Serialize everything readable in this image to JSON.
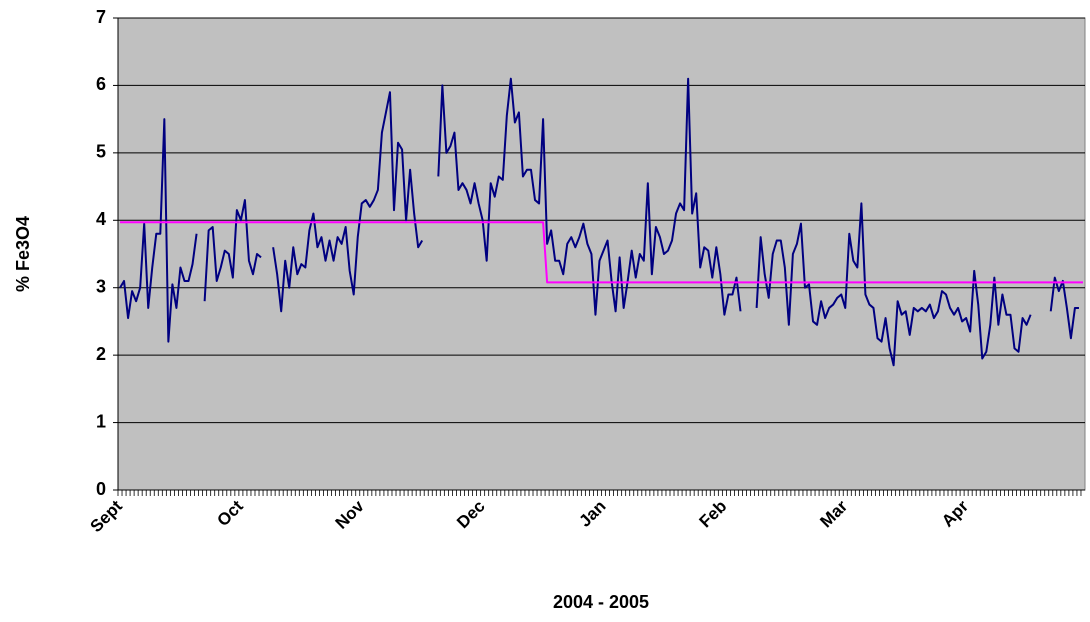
{
  "chart_data": {
    "type": "line",
    "y_label": "% Fe3O4",
    "x_label": "2004 - 2005",
    "categories": [
      "Sept",
      null,
      null,
      null,
      null,
      null,
      null,
      null,
      null,
      null,
      null,
      null,
      null,
      null,
      null,
      null,
      null,
      null,
      null,
      null,
      null,
      null,
      null,
      null,
      null,
      null,
      null,
      null,
      null,
      null,
      "Oct",
      null,
      null,
      null,
      null,
      null,
      null,
      null,
      null,
      null,
      null,
      null,
      null,
      null,
      null,
      null,
      null,
      null,
      null,
      null,
      null,
      null,
      null,
      null,
      null,
      null,
      null,
      null,
      null,
      null,
      "Nov",
      null,
      null,
      null,
      null,
      null,
      null,
      null,
      null,
      null,
      null,
      null,
      null,
      null,
      null,
      null,
      null,
      null,
      null,
      null,
      null,
      null,
      null,
      null,
      null,
      null,
      null,
      null,
      null,
      null,
      "Dec",
      null,
      null,
      null,
      null,
      null,
      null,
      null,
      null,
      null,
      null,
      null,
      null,
      null,
      null,
      null,
      null,
      null,
      null,
      null,
      null,
      null,
      null,
      null,
      null,
      null,
      null,
      null,
      null,
      null,
      "Jan",
      null,
      null,
      null,
      null,
      null,
      null,
      null,
      null,
      null,
      null,
      null,
      null,
      null,
      null,
      null,
      null,
      null,
      null,
      null,
      null,
      null,
      null,
      null,
      null,
      null,
      null,
      null,
      null,
      null,
      "Feb",
      null,
      null,
      null,
      null,
      null,
      null,
      null,
      null,
      null,
      null,
      null,
      null,
      null,
      null,
      null,
      null,
      null,
      null,
      null,
      null,
      null,
      null,
      null,
      null,
      null,
      null,
      null,
      null,
      null,
      "Mar",
      null,
      null,
      null,
      null,
      null,
      null,
      null,
      null,
      null,
      null,
      null,
      null,
      null,
      null,
      null,
      null,
      null,
      null,
      null,
      null,
      null,
      null,
      null,
      null,
      null,
      null,
      null,
      null,
      null,
      "Apr",
      null,
      null,
      null,
      null,
      null,
      null,
      null,
      null,
      null,
      null,
      null,
      null,
      null,
      null,
      null,
      null,
      null,
      null,
      null,
      null,
      null,
      null,
      null,
      null,
      null,
      null,
      null,
      null,
      null
    ],
    "series": [
      {
        "color": "#000080",
        "values": [
          3.0,
          3.1,
          2.55,
          2.95,
          2.8,
          3.0,
          3.95,
          2.7,
          3.3,
          3.8,
          3.8,
          5.5,
          2.2,
          3.05,
          2.7,
          3.3,
          3.1,
          3.1,
          3.35,
          3.8,
          null,
          2.8,
          3.85,
          3.9,
          3.1,
          3.3,
          3.55,
          3.5,
          3.15,
          4.15,
          4.0,
          4.3,
          3.4,
          3.2,
          3.5,
          3.45,
          null,
          null,
          3.6,
          3.2,
          2.65,
          3.4,
          3.0,
          3.6,
          3.2,
          3.35,
          3.3,
          3.85,
          4.1,
          3.6,
          3.75,
          3.4,
          3.7,
          3.4,
          3.75,
          3.65,
          3.9,
          3.25,
          2.9,
          3.75,
          4.25,
          4.3,
          4.2,
          4.3,
          4.45,
          5.3,
          5.6,
          5.9,
          4.15,
          5.15,
          5.05,
          4.0,
          4.75,
          4.1,
          3.6,
          3.7,
          null,
          null,
          null,
          4.65,
          6.0,
          5.0,
          5.1,
          5.3,
          4.45,
          4.55,
          4.45,
          4.25,
          4.55,
          4.25,
          4.0,
          3.4,
          4.55,
          4.35,
          4.65,
          4.6,
          5.55,
          6.1,
          5.45,
          5.6,
          4.65,
          4.75,
          4.75,
          4.3,
          4.25,
          5.5,
          3.65,
          3.85,
          3.4,
          3.4,
          3.2,
          3.65,
          3.75,
          3.6,
          3.75,
          3.95,
          3.65,
          3.5,
          2.6,
          3.4,
          3.55,
          3.7,
          3.1,
          2.65,
          3.45,
          2.7,
          3.1,
          3.55,
          3.15,
          3.5,
          3.4,
          4.55,
          3.2,
          3.9,
          3.75,
          3.5,
          3.55,
          3.7,
          4.1,
          4.25,
          4.15,
          6.1,
          4.1,
          4.4,
          3.3,
          3.6,
          3.55,
          3.15,
          3.6,
          3.2,
          2.6,
          2.9,
          2.9,
          3.15,
          2.65,
          null,
          null,
          null,
          2.7,
          3.75,
          3.2,
          2.85,
          3.5,
          3.7,
          3.7,
          3.3,
          2.45,
          3.5,
          3.65,
          3.95,
          3.0,
          3.05,
          2.5,
          2.45,
          2.8,
          2.55,
          2.7,
          2.75,
          2.85,
          2.9,
          2.7,
          3.8,
          3.4,
          3.3,
          4.25,
          2.9,
          2.75,
          2.7,
          2.25,
          2.2,
          2.55,
          2.1,
          1.85,
          2.8,
          2.6,
          2.65,
          2.3,
          2.7,
          2.65,
          2.7,
          2.65,
          2.75,
          2.55,
          2.65,
          2.95,
          2.9,
          2.7,
          2.6,
          2.7,
          2.5,
          2.55,
          2.35,
          3.25,
          2.75,
          1.95,
          2.05,
          2.45,
          3.15,
          2.45,
          2.9,
          2.6,
          2.6,
          2.1,
          2.05,
          2.55,
          2.45,
          2.6,
          null,
          null,
          null,
          null,
          2.65,
          3.15,
          2.95,
          3.1,
          2.7,
          2.25,
          2.7,
          2.7,
          null
        ]
      },
      {
        "color": "#ff00ff",
        "values": [
          3.97,
          3.97,
          3.97,
          3.97,
          3.97,
          3.97,
          3.97,
          3.97,
          3.97,
          3.97,
          3.97,
          3.97,
          3.97,
          3.97,
          3.97,
          3.97,
          3.97,
          3.97,
          3.97,
          3.97,
          3.97,
          3.97,
          3.97,
          3.97,
          3.97,
          3.97,
          3.97,
          3.97,
          3.97,
          3.97,
          3.97,
          3.97,
          3.97,
          3.97,
          3.97,
          3.97,
          3.97,
          3.97,
          3.97,
          3.97,
          3.97,
          3.97,
          3.97,
          3.97,
          3.97,
          3.97,
          3.97,
          3.97,
          3.97,
          3.97,
          3.97,
          3.97,
          3.97,
          3.97,
          3.97,
          3.97,
          3.97,
          3.97,
          3.97,
          3.97,
          3.97,
          3.97,
          3.97,
          3.97,
          3.97,
          3.97,
          3.97,
          3.97,
          3.97,
          3.97,
          3.97,
          3.97,
          3.97,
          3.97,
          3.97,
          3.97,
          3.97,
          3.97,
          3.97,
          3.97,
          3.97,
          3.97,
          3.97,
          3.97,
          3.97,
          3.97,
          3.97,
          3.97,
          3.97,
          3.97,
          3.97,
          3.97,
          3.97,
          3.97,
          3.97,
          3.97,
          3.97,
          3.97,
          3.97,
          3.97,
          3.97,
          3.97,
          3.97,
          3.97,
          3.97,
          3.97,
          3.08,
          3.08,
          3.08,
          3.08,
          3.08,
          3.08,
          3.08,
          3.08,
          3.08,
          3.08,
          3.08,
          3.08,
          3.08,
          3.08,
          3.08,
          3.08,
          3.08,
          3.08,
          3.08,
          3.08,
          3.08,
          3.08,
          3.08,
          3.08,
          3.08,
          3.08,
          3.08,
          3.08,
          3.08,
          3.08,
          3.08,
          3.08,
          3.08,
          3.08,
          3.08,
          3.08,
          3.08,
          3.08,
          3.08,
          3.08,
          3.08,
          3.08,
          3.08,
          3.08,
          3.08,
          3.08,
          3.08,
          3.08,
          3.08,
          3.08,
          3.08,
          3.08,
          3.08,
          3.08,
          3.08,
          3.08,
          3.08,
          3.08,
          3.08,
          3.08,
          3.08,
          3.08,
          3.08,
          3.08,
          3.08,
          3.08,
          3.08,
          3.08,
          3.08,
          3.08,
          3.08,
          3.08,
          3.08,
          3.08,
          3.08,
          3.08,
          3.08,
          3.08,
          3.08,
          3.08,
          3.08,
          3.08,
          3.08,
          3.08,
          3.08,
          3.08,
          3.08,
          3.08,
          3.08,
          3.08,
          3.08,
          3.08,
          3.08,
          3.08,
          3.08,
          3.08,
          3.08,
          3.08,
          3.08,
          3.08,
          3.08,
          3.08,
          3.08,
          3.08,
          3.08,
          3.08,
          3.08,
          3.08,
          3.08,
          3.08,
          3.08,
          3.08,
          3.08,
          3.08,
          3.08,
          3.08,
          3.08,
          3.08,
          3.08,
          3.08,
          3.08,
          3.08,
          3.08,
          3.08,
          3.08,
          3.08,
          3.08,
          3.08,
          3.08,
          3.08,
          3.08,
          3.08,
          3.08,
          3.08
        ]
      }
    ],
    "ylim": [
      0,
      7
    ],
    "yticks": [
      0,
      1,
      2,
      3,
      4,
      5,
      6,
      7
    ],
    "grid": true,
    "plot_background": "#c0c0c0"
  }
}
